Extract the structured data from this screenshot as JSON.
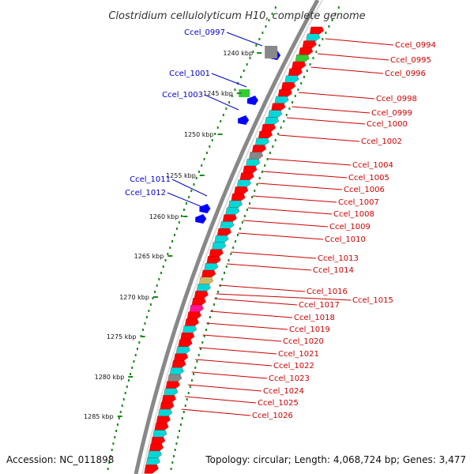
{
  "title": "Clostridium cellulolyticum H10, complete genome",
  "footer": {
    "accession": "Accession: NC_011898",
    "summary": "Topology: circular; Length: 4,068,724 bp; Genes: 3,477"
  },
  "kbp_ticks": [
    "1240 kbp",
    "1245 kbp",
    "1250 kbp",
    "1255 kbp",
    "1260 kbp",
    "1265 kbp",
    "1270 kbp",
    "1275 kbp",
    "1280 kbp",
    "1285 kbp"
  ],
  "left_labels": [
    "Ccel_0997",
    "Ccel_1001",
    "Ccel_1003",
    "Ccel_1011",
    "Ccel_1012"
  ],
  "right_labels": [
    "Ccel_0994",
    "Ccel_0995",
    "Ccel_0996",
    "Ccel_0998",
    "Ccel_0999",
    "Ccel_1000",
    "Ccel_1002",
    "Ccel_1004",
    "Ccel_1005",
    "Ccel_1006",
    "Ccel_1007",
    "Ccel_1008",
    "Ccel_1009",
    "Ccel_1010",
    "Ccel_1013",
    "Ccel_1014",
    "Ccel_1015",
    "Ccel_1016",
    "Ccel_1017",
    "Ccel_1018",
    "Ccel_1019",
    "Ccel_1020",
    "Ccel_1021",
    "Ccel_1022",
    "Ccel_1023",
    "Ccel_1024",
    "Ccel_1025",
    "Ccel_1026"
  ],
  "colors": {
    "cds_forward": "#ff0000",
    "cds_reverse": "#0000ff",
    "cog_cyan": "#00d8d8",
    "cog_green": "#33cc33",
    "cog_olive": "#c8bb6a",
    "cog_magenta": "#ff1493",
    "cog_gray": "#888888",
    "backbone": "#888888",
    "tick": "#1a8a1a",
    "left_label": "#0000cc",
    "right_label": "#cc0000"
  }
}
